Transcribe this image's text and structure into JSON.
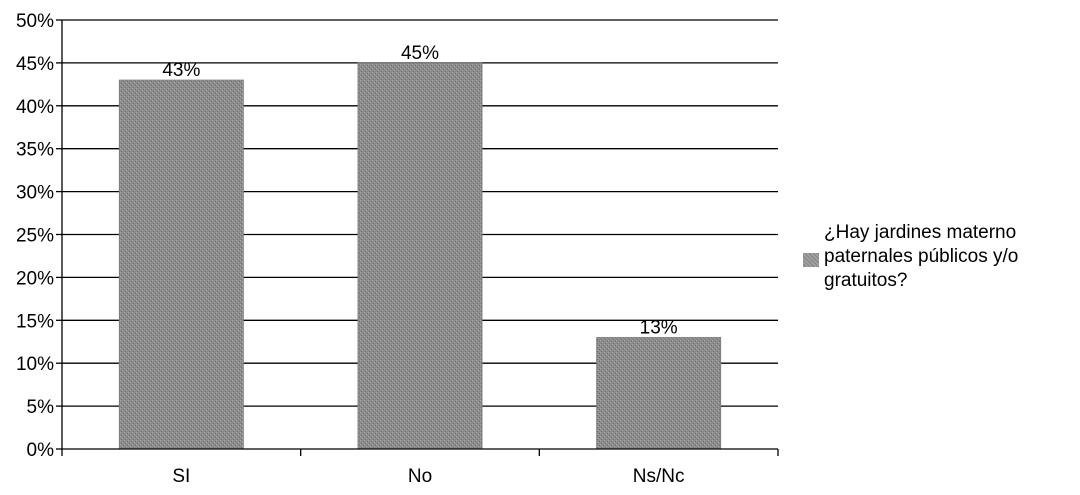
{
  "chart_data": {
    "type": "bar",
    "categories": [
      "SI",
      "No",
      "Ns/Nc"
    ],
    "series": [
      {
        "name": "¿Hay jardines materno paternales públicos y/o gratuitos?",
        "values": [
          43,
          45,
          13
        ],
        "labels": [
          "43%",
          "45%",
          "13%"
        ],
        "color": "#8c8c8c"
      }
    ],
    "ylim": [
      0,
      50
    ],
    "yticks": [
      0,
      5,
      10,
      15,
      20,
      25,
      30,
      35,
      40,
      45,
      50
    ],
    "ytick_labels": [
      "0%",
      "5%",
      "10%",
      "15%",
      "20%",
      "25%",
      "30%",
      "35%",
      "40%",
      "45%",
      "50%"
    ],
    "grid": true,
    "legend": {
      "position": "right",
      "text": "¿Hay jardines materno\npaternales públicos y/o\ngratuitos?"
    }
  }
}
